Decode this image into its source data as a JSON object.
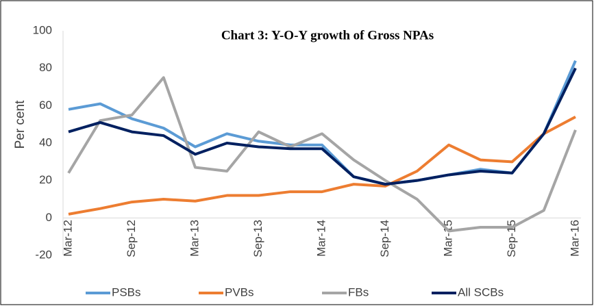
{
  "chart_data": {
    "type": "line",
    "title": "Chart 3: Y-O-Y growth of Gross NPAs",
    "y_label": "Per cent",
    "categories": [
      "Mar-12",
      null,
      "Sep-12",
      null,
      "Mar-13",
      null,
      "Sep-13",
      null,
      "Mar-14",
      null,
      "Sep-14",
      null,
      "Mar-15",
      null,
      "Sep-15",
      null,
      "Mar-16"
    ],
    "series": [
      {
        "name": "PSBs",
        "color": "#5b9bd5",
        "values": [
          58,
          61,
          53,
          48,
          38,
          45,
          41,
          39,
          39,
          22,
          18,
          20,
          23,
          26,
          24,
          45,
          84
        ]
      },
      {
        "name": "PVBs",
        "color": "#ed7d31",
        "values": [
          2,
          5,
          8.5,
          10,
          9,
          12,
          12,
          14,
          14,
          18,
          17,
          25,
          39,
          31,
          30,
          45,
          54
        ]
      },
      {
        "name": "FBs",
        "color": "#a5a5a5",
        "values": [
          24,
          52,
          55,
          75,
          27,
          25,
          46,
          38,
          45,
          31,
          20,
          10,
          -7,
          -5,
          -5,
          4,
          47
        ]
      },
      {
        "name": "All SCBs",
        "color": "#002060",
        "values": [
          46,
          51,
          46,
          44,
          34,
          40,
          38,
          37,
          37,
          22,
          18,
          20,
          23,
          25,
          24,
          45,
          80
        ]
      }
    ],
    "ylim": [
      -20,
      100
    ],
    "yticks": [
      -20,
      0,
      20,
      40,
      60,
      80,
      100
    ],
    "grid": false,
    "legend": "bottom"
  }
}
